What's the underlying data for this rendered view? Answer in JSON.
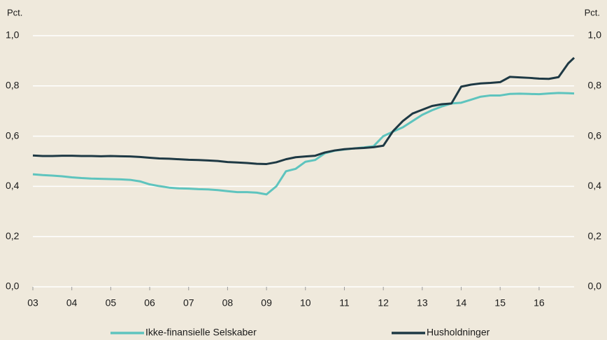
{
  "chart_data": {
    "type": "line",
    "y_label": "Pct.",
    "y2_label": "Pct.",
    "x": [
      2003,
      2003.25,
      2003.5,
      2003.75,
      2004,
      2004.25,
      2004.5,
      2004.75,
      2005,
      2005.25,
      2005.5,
      2005.75,
      2006,
      2006.25,
      2006.5,
      2006.75,
      2007,
      2007.25,
      2007.5,
      2007.75,
      2008,
      2008.25,
      2008.5,
      2008.75,
      2009,
      2009.25,
      2009.5,
      2009.75,
      2010,
      2010.25,
      2010.5,
      2010.75,
      2011,
      2011.25,
      2011.5,
      2011.75,
      2012,
      2012.25,
      2012.5,
      2012.75,
      2013,
      2013.25,
      2013.5,
      2013.75,
      2014,
      2014.25,
      2014.5,
      2014.75,
      2015,
      2015.25,
      2015.5,
      2015.75,
      2016,
      2016.25,
      2016.5,
      2016.75,
      2016.9
    ],
    "series": [
      {
        "name": "Ikke-finansielle Selskaber",
        "color": "#5ec4be",
        "values": [
          0.448,
          0.445,
          0.443,
          0.44,
          0.436,
          0.433,
          0.431,
          0.43,
          0.429,
          0.428,
          0.426,
          0.42,
          0.408,
          0.401,
          0.395,
          0.392,
          0.391,
          0.389,
          0.388,
          0.385,
          0.381,
          0.377,
          0.377,
          0.375,
          0.368,
          0.4,
          0.46,
          0.47,
          0.498,
          0.505,
          0.532,
          0.542,
          0.547,
          0.551,
          0.555,
          0.56,
          0.6,
          0.618,
          0.635,
          0.66,
          0.685,
          0.703,
          0.718,
          0.73,
          0.733,
          0.745,
          0.757,
          0.762,
          0.762,
          0.768,
          0.769,
          0.768,
          0.767,
          0.77,
          0.772,
          0.771,
          0.77
        ]
      },
      {
        "name": "Husholdninger",
        "color": "#1e3944",
        "values": [
          0.523,
          0.521,
          0.521,
          0.522,
          0.522,
          0.521,
          0.521,
          0.52,
          0.521,
          0.52,
          0.519,
          0.517,
          0.514,
          0.511,
          0.51,
          0.508,
          0.506,
          0.505,
          0.503,
          0.501,
          0.497,
          0.495,
          0.493,
          0.49,
          0.489,
          0.496,
          0.508,
          0.516,
          0.519,
          0.522,
          0.535,
          0.543,
          0.548,
          0.551,
          0.553,
          0.556,
          0.562,
          0.62,
          0.66,
          0.69,
          0.705,
          0.72,
          0.727,
          0.73,
          0.797,
          0.805,
          0.81,
          0.812,
          0.815,
          0.836,
          0.834,
          0.832,
          0.829,
          0.828,
          0.835,
          0.89,
          0.912
        ]
      }
    ],
    "xlim": [
      2003,
      2016.9
    ],
    "xticks": [
      {
        "value": 2003,
        "label": "03"
      },
      {
        "value": 2004,
        "label": "04"
      },
      {
        "value": 2005,
        "label": "05"
      },
      {
        "value": 2006,
        "label": "06"
      },
      {
        "value": 2007,
        "label": "07"
      },
      {
        "value": 2008,
        "label": "08"
      },
      {
        "value": 2009,
        "label": "09"
      },
      {
        "value": 2010,
        "label": "10"
      },
      {
        "value": 2011,
        "label": "11"
      },
      {
        "value": 2012,
        "label": "12"
      },
      {
        "value": 2013,
        "label": "13"
      },
      {
        "value": 2014,
        "label": "14"
      },
      {
        "value": 2015,
        "label": "15"
      },
      {
        "value": 2016,
        "label": "16"
      }
    ],
    "ylim": [
      0,
      1
    ],
    "yticks": [
      {
        "value": 0,
        "label": "0,0"
      },
      {
        "value": 0.2,
        "label": "0,2"
      },
      {
        "value": 0.4,
        "label": "0,4"
      },
      {
        "value": 0.6,
        "label": "0,6"
      },
      {
        "value": 0.8,
        "label": "0,8"
      },
      {
        "value": 1,
        "label": "1,0"
      }
    ],
    "grid": true
  }
}
